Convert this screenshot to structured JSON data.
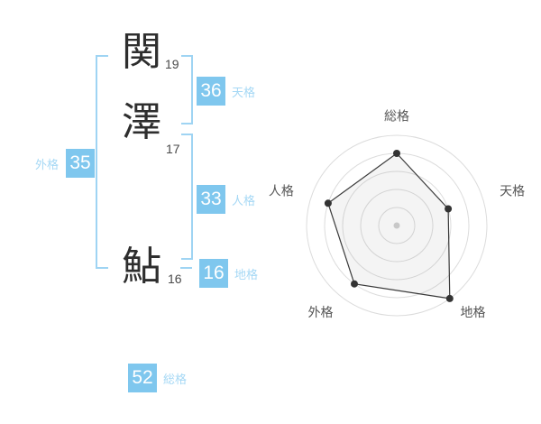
{
  "page": {
    "background": "#ffffff"
  },
  "name_diagram": {
    "characters": [
      {
        "char": "関",
        "strokes": "19"
      },
      {
        "char": "澤",
        "strokes": "17"
      },
      {
        "char": "鮎",
        "strokes": "16"
      }
    ],
    "badges": {
      "tenkaku": {
        "value": "36",
        "label": "天格"
      },
      "jinkaku": {
        "value": "33",
        "label": "人格"
      },
      "chikaku": {
        "value": "16",
        "label": "地格"
      },
      "gaikaku": {
        "value": "35",
        "label": "外格"
      },
      "soukaku": {
        "value": "52",
        "label": "総格"
      }
    }
  },
  "colors": {
    "page_bg": "#ffffff",
    "badge_blue": "#7fc7ee",
    "label_blue": "#a5d8f5",
    "bracket_blue": "#9fd4f3",
    "kanji_color": "#2e2e2e",
    "stroke_num_color": "#4a4a4a",
    "radar_grid": "#dcdcdc",
    "radar_stroke": "#3a3a3a",
    "radar_fill": "rgba(120,120,120,0.08)",
    "radar_dot": "#333333",
    "radar_center_dot": "#c8c8c8",
    "radar_label": "#555555"
  },
  "chart_data": {
    "type": "radar",
    "title": "",
    "categories": [
      "総格",
      "天格",
      "地格",
      "外格",
      "人格"
    ],
    "values": [
      80,
      60,
      100,
      80,
      80
    ],
    "max": 100,
    "grid_rings": [
      20,
      40,
      60,
      80,
      100
    ],
    "start_angle_deg": 90,
    "direction": "clockwise",
    "legend": null
  }
}
